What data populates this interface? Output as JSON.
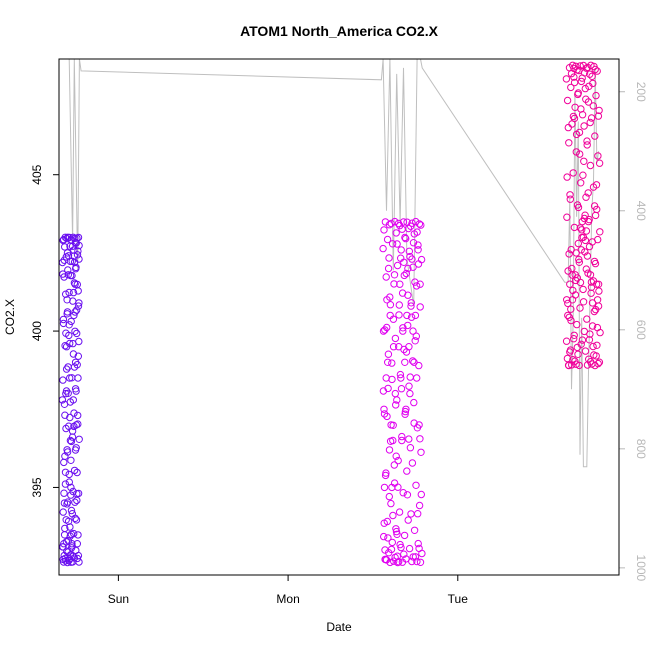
{
  "chart_data": {
    "type": "scatter",
    "title": "ATOM1 North_America CO2.X",
    "xlabel": "Date",
    "ylabel": "CO2.X",
    "x_ticks": [
      "Sun",
      "Mon",
      "Tue"
    ],
    "y_ticks": [
      395,
      400,
      405
    ],
    "y_right_ticks": [
      200,
      400,
      600,
      800,
      1000
    ],
    "x_range_days": [
      -0.35,
      2.95
    ],
    "y_range": [
      392.2,
      408.7
    ],
    "y_right_range": [
      1012,
      145
    ],
    "grid": false,
    "legend": "none",
    "colors": {
      "points_early": "#6a0ff0",
      "points_mid": "#e000f0",
      "points_late": "#f0009a",
      "line": "#bfbfbf"
    },
    "series": [
      {
        "color": "#6a0ff0",
        "x_range": [
          -0.33,
          -0.23
        ],
        "y_range": [
          392.6,
          403.0
        ],
        "points": [
          [
            -0.325,
            392.7
          ],
          [
            -0.322,
            393.2
          ],
          [
            -0.318,
            394.5
          ],
          [
            -0.315,
            396.0
          ],
          [
            -0.31,
            398.0
          ],
          [
            -0.305,
            399.5
          ],
          [
            -0.302,
            401.0
          ],
          [
            -0.3,
            402.5
          ],
          [
            -0.298,
            403.0
          ],
          [
            -0.295,
            401.8
          ],
          [
            -0.29,
            400.2
          ],
          [
            -0.287,
            398.5
          ],
          [
            -0.283,
            396.5
          ],
          [
            -0.28,
            395.0
          ],
          [
            -0.277,
            393.5
          ],
          [
            -0.274,
            393.2
          ],
          [
            -0.27,
            396.8
          ],
          [
            -0.266,
            397.8
          ],
          [
            -0.262,
            400.5
          ],
          [
            -0.258,
            402.2
          ],
          [
            -0.255,
            401.5
          ],
          [
            -0.252,
            399.0
          ],
          [
            -0.248,
            397.0
          ],
          [
            -0.245,
            394.8
          ],
          [
            -0.242,
            393.2
          ],
          [
            -0.238,
            398.5
          ],
          [
            -0.235,
            400.8
          ],
          [
            -0.232,
            402.3
          ]
        ]
      },
      {
        "color": "#e000f0",
        "x_range": [
          1.56,
          1.79
        ],
        "y_range": [
          392.6,
          403.5
        ],
        "points": [
          [
            1.562,
            400.0
          ],
          [
            1.565,
            397.5
          ],
          [
            1.568,
            395.0
          ],
          [
            1.571,
            393.0
          ],
          [
            1.574,
            392.7
          ],
          [
            1.578,
            398.5
          ],
          [
            1.582,
            401.0
          ],
          [
            1.587,
            399.0
          ],
          [
            1.592,
            402.0
          ],
          [
            1.597,
            403.4
          ],
          [
            1.602,
            400.5
          ],
          [
            1.607,
            397.0
          ],
          [
            1.612,
            395.0
          ],
          [
            1.617,
            396.5
          ],
          [
            1.622,
            399.5
          ],
          [
            1.627,
            401.8
          ],
          [
            1.632,
            398.0
          ],
          [
            1.637,
            396.0
          ],
          [
            1.642,
            393.5
          ],
          [
            1.646,
            392.6
          ],
          [
            1.652,
            399.5
          ],
          [
            1.658,
            401.5
          ],
          [
            1.664,
            398.5
          ],
          [
            1.67,
            396.5
          ],
          [
            1.676,
            400.0
          ],
          [
            1.682,
            402.2
          ],
          [
            1.688,
            399.0
          ],
          [
            1.694,
            397.5
          ],
          [
            1.7,
            400.5
          ],
          [
            1.706,
            402.0
          ],
          [
            1.712,
            399.5
          ],
          [
            1.718,
            398.0
          ],
          [
            1.724,
            400.8
          ],
          [
            1.73,
            402.3
          ],
          [
            1.736,
            400.0
          ],
          [
            1.742,
            399.0
          ],
          [
            1.75,
            400.5
          ],
          [
            1.758,
            398.5
          ],
          [
            1.766,
            402.6
          ],
          [
            1.772,
            397.0
          ],
          [
            1.778,
            401.5
          ]
        ]
      },
      {
        "color": "#f0009a",
        "x_range": [
          2.64,
          2.84
        ],
        "y_range": [
          398.9,
          408.5
        ],
        "points": [
          [
            2.642,
            401.0
          ],
          [
            2.648,
            400.5
          ],
          [
            2.654,
            398.9
          ],
          [
            2.66,
            401.5
          ],
          [
            2.666,
            400.7
          ],
          [
            2.672,
            402.0
          ],
          [
            2.678,
            401.3
          ],
          [
            2.684,
            408.4
          ],
          [
            2.688,
            406.8
          ],
          [
            2.692,
            401.8
          ],
          [
            2.698,
            402.5
          ],
          [
            2.704,
            401.7
          ],
          [
            2.71,
            402.8
          ],
          [
            2.716,
            402.2
          ],
          [
            2.722,
            403.3
          ],
          [
            2.728,
            402.6
          ],
          [
            2.734,
            403.5
          ],
          [
            2.74,
            403.0
          ],
          [
            2.746,
            403.6
          ],
          [
            2.752,
            402.9
          ],
          [
            2.758,
            403.2
          ],
          [
            2.764,
            402.4
          ],
          [
            2.77,
            403.5
          ],
          [
            2.776,
            402.7
          ],
          [
            2.782,
            401.8
          ],
          [
            2.788,
            401.4
          ],
          [
            2.794,
            400.9
          ],
          [
            2.8,
            401.6
          ],
          [
            2.806,
            404.0
          ],
          [
            2.812,
            403.7
          ],
          [
            2.818,
            401.5
          ],
          [
            2.824,
            401.0
          ],
          [
            2.83,
            400.8
          ]
        ]
      }
    ],
    "secondary_line": {
      "color": "#bfbfbf",
      "points": [
        [
          -0.33,
          145
        ],
        [
          -0.31,
          145
        ],
        [
          -0.29,
          145
        ],
        [
          -0.27,
          450
        ],
        [
          -0.26,
          145
        ],
        [
          -0.24,
          500
        ],
        [
          -0.23,
          145
        ],
        [
          -0.22,
          165
        ],
        [
          1.55,
          180
        ],
        [
          1.56,
          145
        ],
        [
          1.58,
          400
        ],
        [
          1.6,
          145
        ],
        [
          1.62,
          500
        ],
        [
          1.64,
          170
        ],
        [
          1.66,
          420
        ],
        [
          1.68,
          160
        ],
        [
          1.7,
          480
        ],
        [
          1.74,
          560
        ],
        [
          1.76,
          145
        ],
        [
          1.78,
          145
        ],
        [
          1.79,
          160
        ],
        [
          2.63,
          520
        ],
        [
          2.65,
          520
        ],
        [
          2.66,
          380
        ],
        [
          2.67,
          700
        ],
        [
          2.68,
          580
        ],
        [
          2.69,
          200
        ],
        [
          2.7,
          410
        ],
        [
          2.71,
          250
        ],
        [
          2.72,
          810
        ],
        [
          2.73,
          580
        ],
        [
          2.74,
          830
        ],
        [
          2.76,
          830
        ],
        [
          2.77,
          670
        ],
        [
          2.79,
          400
        ],
        [
          2.8,
          350
        ],
        [
          2.81,
          160
        ],
        [
          2.82,
          320
        ],
        [
          2.83,
          300
        ]
      ]
    }
  }
}
